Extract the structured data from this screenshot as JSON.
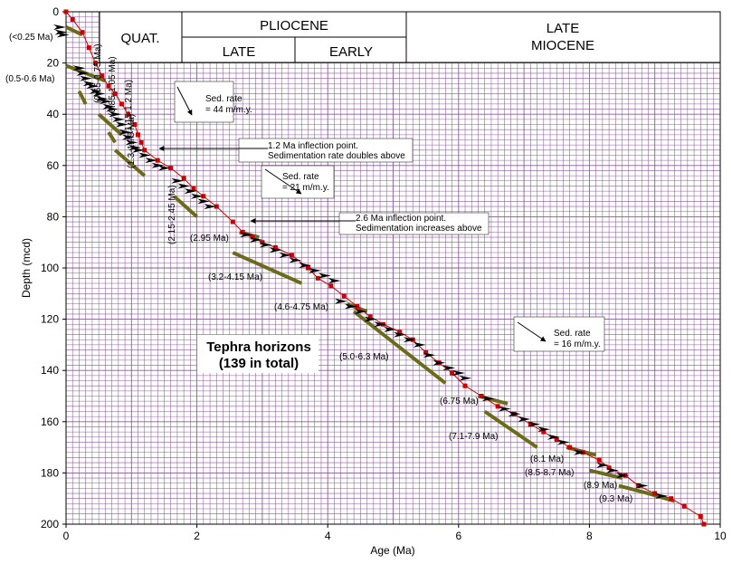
{
  "chart_data": {
    "type": "scatter",
    "title": "",
    "xlabel": "Age (Ma)",
    "ylabel": "Depth (mcd)",
    "xlim": [
      0,
      10
    ],
    "ylim": [
      200,
      0
    ],
    "x_ticks": [
      "0",
      "2",
      "4",
      "6",
      "8",
      "10"
    ],
    "y_ticks": [
      "0",
      "20",
      "40",
      "60",
      "80",
      "100",
      "120",
      "140",
      "160",
      "180",
      "200"
    ],
    "grid": true,
    "colors": {
      "grid": "#8a5b9c",
      "curve": "#cc0000",
      "range_bar": "#6b6b1a",
      "arrow": "#000000"
    },
    "age_depth_points": [
      [
        0.0,
        0
      ],
      [
        0.1,
        3
      ],
      [
        0.25,
        8
      ],
      [
        0.35,
        14
      ],
      [
        0.45,
        20
      ],
      [
        0.55,
        25
      ],
      [
        0.65,
        29
      ],
      [
        0.75,
        32
      ],
      [
        0.85,
        36
      ],
      [
        0.95,
        40
      ],
      [
        1.05,
        44
      ],
      [
        1.1,
        48
      ],
      [
        1.15,
        51
      ],
      [
        1.2,
        54
      ],
      [
        1.4,
        58
      ],
      [
        1.6,
        61
      ],
      [
        1.8,
        65
      ],
      [
        1.95,
        69
      ],
      [
        2.1,
        72
      ],
      [
        2.3,
        76
      ],
      [
        2.55,
        82
      ],
      [
        2.7,
        86
      ],
      [
        2.85,
        88
      ],
      [
        3.0,
        90
      ],
      [
        3.2,
        92
      ],
      [
        3.45,
        95
      ],
      [
        3.7,
        100
      ],
      [
        3.85,
        104
      ],
      [
        4.05,
        107
      ],
      [
        4.25,
        111
      ],
      [
        4.45,
        115
      ],
      [
        4.65,
        119
      ],
      [
        4.85,
        122
      ],
      [
        5.1,
        125
      ],
      [
        5.3,
        128
      ],
      [
        5.5,
        133
      ],
      [
        5.7,
        137
      ],
      [
        5.9,
        141
      ],
      [
        6.1,
        146
      ],
      [
        6.35,
        150
      ],
      [
        6.6,
        154
      ],
      [
        6.85,
        157
      ],
      [
        7.1,
        161
      ],
      [
        7.3,
        164
      ],
      [
        7.5,
        167
      ],
      [
        7.7,
        170
      ],
      [
        7.9,
        172
      ],
      [
        8.15,
        175
      ],
      [
        8.3,
        178
      ],
      [
        8.55,
        181
      ],
      [
        8.75,
        185
      ],
      [
        9.0,
        188
      ],
      [
        9.25,
        190
      ],
      [
        9.45,
        193
      ],
      [
        9.7,
        197
      ],
      [
        9.75,
        200
      ]
    ],
    "tephra_horizons": [
      [
        0.0,
        6
      ],
      [
        0.02,
        8
      ],
      [
        0.05,
        9
      ],
      [
        0.3,
        22
      ],
      [
        0.35,
        24
      ],
      [
        0.4,
        26
      ],
      [
        0.45,
        28
      ],
      [
        0.5,
        29
      ],
      [
        0.55,
        31
      ],
      [
        0.6,
        32
      ],
      [
        0.65,
        34
      ],
      [
        0.7,
        35
      ],
      [
        0.75,
        37
      ],
      [
        0.8,
        38
      ],
      [
        0.85,
        40
      ],
      [
        0.9,
        42
      ],
      [
        0.95,
        44
      ],
      [
        1.0,
        47
      ],
      [
        1.05,
        49
      ],
      [
        1.1,
        51
      ],
      [
        1.15,
        53
      ],
      [
        1.2,
        54
      ],
      [
        1.3,
        56
      ],
      [
        1.4,
        58
      ],
      [
        1.5,
        60
      ],
      [
        1.6,
        61
      ],
      [
        1.8,
        66
      ],
      [
        1.9,
        68
      ],
      [
        2.0,
        70
      ],
      [
        2.1,
        72
      ],
      [
        2.2,
        74
      ],
      [
        2.3,
        76
      ],
      [
        2.85,
        87
      ],
      [
        3.0,
        89
      ],
      [
        3.15,
        91
      ],
      [
        3.3,
        93
      ],
      [
        3.45,
        95
      ],
      [
        3.6,
        97
      ],
      [
        3.75,
        99
      ],
      [
        3.9,
        101
      ],
      [
        4.05,
        103
      ],
      [
        4.2,
        105
      ],
      [
        4.3,
        113
      ],
      [
        4.45,
        115
      ],
      [
        4.6,
        117
      ],
      [
        4.75,
        120
      ],
      [
        4.9,
        122
      ],
      [
        5.05,
        124
      ],
      [
        5.2,
        126
      ],
      [
        5.35,
        128
      ],
      [
        5.5,
        130
      ],
      [
        5.65,
        134
      ],
      [
        5.8,
        137
      ],
      [
        5.95,
        139
      ],
      [
        6.1,
        141
      ],
      [
        6.2,
        143
      ],
      [
        6.55,
        151
      ],
      [
        6.8,
        155
      ],
      [
        6.95,
        157
      ],
      [
        7.1,
        159
      ],
      [
        7.25,
        161
      ],
      [
        7.4,
        163
      ],
      [
        7.55,
        166
      ],
      [
        7.7,
        168
      ],
      [
        7.95,
        172
      ],
      [
        8.3,
        177
      ],
      [
        8.45,
        179
      ],
      [
        8.6,
        181
      ],
      [
        8.9,
        185
      ],
      [
        9.2,
        189
      ]
    ],
    "age_range_bars": [
      {
        "label": "(<0.25 Ma)",
        "x": [
          0.0,
          0.25
        ],
        "y": [
          6,
          9
        ]
      },
      {
        "label": "(0.5-0.6 Ma)",
        "x": [
          0.0,
          0.6
        ],
        "y": [
          21,
          27
        ]
      },
      {
        "label": "(0.65-0.75 Ma)",
        "x": [
          0.2,
          0.3
        ],
        "y": [
          31,
          36
        ]
      },
      {
        "label": "(0.85-1.05 Ma)",
        "x": [
          0.5,
          0.85
        ],
        "y": [
          40,
          48
        ]
      },
      {
        "label": "(1.15-1.2 Ma)",
        "x": [
          0.65,
          0.75
        ],
        "y": [
          47,
          51
        ]
      },
      {
        "label": "(1.3-1.75 Ma)",
        "x": [
          0.75,
          1.2
        ],
        "y": [
          54,
          64
        ]
      },
      {
        "label": "(2.15-2.45 Ma)",
        "x": [
          1.65,
          2.0
        ],
        "y": [
          72,
          80
        ]
      },
      {
        "label": "(2.95 Ma)",
        "x": [
          2.65,
          2.95
        ],
        "y": [
          86,
          88
        ]
      },
      {
        "label": "(3.2-4.15 Ma)",
        "x": [
          2.55,
          3.6
        ],
        "y": [
          94,
          106
        ]
      },
      {
        "label": "(4.6-4.75 Ma)",
        "x": [
          4.3,
          4.6
        ],
        "y": [
          114,
          117
        ]
      },
      {
        "label": "(5.0-6.3 Ma)",
        "x": [
          4.4,
          5.8
        ],
        "y": [
          117,
          145
        ]
      },
      {
        "label": "(6.75 Ma)",
        "x": [
          6.3,
          6.75
        ],
        "y": [
          150,
          153
        ]
      },
      {
        "label": "(7.1-7.9 Ma)",
        "x": [
          6.4,
          7.2
        ],
        "y": [
          156,
          170
        ]
      },
      {
        "label": "(8.1 Ma)",
        "x": [
          7.65,
          8.1
        ],
        "y": [
          170,
          173
        ]
      },
      {
        "label": "(8.5-8.7 Ma)",
        "x": [
          8.0,
          8.5
        ],
        "y": [
          179,
          182
        ]
      },
      {
        "label": "(8.9 Ma)",
        "x": [
          8.45,
          8.9
        ],
        "y": [
          185,
          188
        ]
      },
      {
        "label": "(9.3 Ma)",
        "x": [
          8.9,
          9.3
        ],
        "y": [
          188,
          191
        ]
      }
    ],
    "epochs": {
      "quat": "QUAT.",
      "pliocene": "PLIOCENE",
      "late": "LATE",
      "early": "EARLY",
      "late_miocene_1": "LATE",
      "late_miocene_2": "MIOCENE"
    },
    "annotations": {
      "sed_rate_1_a": "Sed. rate",
      "sed_rate_1_b": "= 44 m/m.y.",
      "inflection_1_a": "1.2 Ma inflection point.",
      "inflection_1_b": "Sedimentation rate doubles above",
      "sed_rate_2_a": "Sed. rate",
      "sed_rate_2_b": "= 21 m/m.y.",
      "inflection_2_a": "2.6 Ma inflection point.",
      "inflection_2_b": "Sedimentation increases above",
      "sed_rate_3_a": "Sed. rate",
      "sed_rate_3_b": "= 16 m/m.y.",
      "tephra_1": "Tephra horizons",
      "tephra_2": "(139 in total)"
    }
  }
}
